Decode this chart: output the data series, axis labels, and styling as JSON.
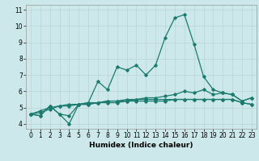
{
  "title": "",
  "xlabel": "Humidex (Indice chaleur)",
  "background_color": "#cce8ea",
  "grid_color": "#b8d4d6",
  "line_color": "#1a7a6e",
  "x_values": [
    0,
    1,
    2,
    3,
    4,
    5,
    6,
    7,
    8,
    9,
    10,
    11,
    12,
    13,
    14,
    15,
    16,
    17,
    18,
    19,
    20,
    21,
    22,
    23
  ],
  "series": [
    [
      4.6,
      4.5,
      5.1,
      4.6,
      4.0,
      5.2,
      5.3,
      6.6,
      6.1,
      7.5,
      7.3,
      7.6,
      7.0,
      7.6,
      9.3,
      10.5,
      10.7,
      8.9,
      6.9,
      6.1,
      5.9,
      5.8,
      5.4,
      5.6
    ],
    [
      4.6,
      4.5,
      5.1,
      4.6,
      4.5,
      5.2,
      5.2,
      5.3,
      5.4,
      5.4,
      5.5,
      5.5,
      5.6,
      5.6,
      5.7,
      5.8,
      6.0,
      5.9,
      6.1,
      5.8,
      5.9,
      5.8,
      5.4,
      5.6
    ],
    [
      4.6,
      4.7,
      4.9,
      5.1,
      5.2,
      5.2,
      5.3,
      5.3,
      5.4,
      5.4,
      5.4,
      5.5,
      5.5,
      5.5,
      5.5,
      5.5,
      5.5,
      5.5,
      5.5,
      5.5,
      5.5,
      5.5,
      5.3,
      5.2
    ],
    [
      4.6,
      4.8,
      5.0,
      5.1,
      5.1,
      5.2,
      5.2,
      5.3,
      5.3,
      5.3,
      5.4,
      5.4,
      5.4,
      5.4,
      5.4,
      5.5,
      5.5,
      5.5,
      5.5,
      5.5,
      5.5,
      5.5,
      5.3,
      5.2
    ]
  ],
  "ylim": [
    3.7,
    11.3
  ],
  "xlim": [
    -0.5,
    23.5
  ],
  "yticks": [
    4,
    5,
    6,
    7,
    8,
    9,
    10,
    11
  ],
  "xticks": [
    0,
    1,
    2,
    3,
    4,
    5,
    6,
    7,
    8,
    9,
    10,
    11,
    12,
    13,
    14,
    15,
    16,
    17,
    18,
    19,
    20,
    21,
    22,
    23
  ],
  "marker": "D",
  "marker_size": 1.8,
  "line_width": 0.9,
  "tick_fontsize": 5.5,
  "xlabel_fontsize": 6.5
}
